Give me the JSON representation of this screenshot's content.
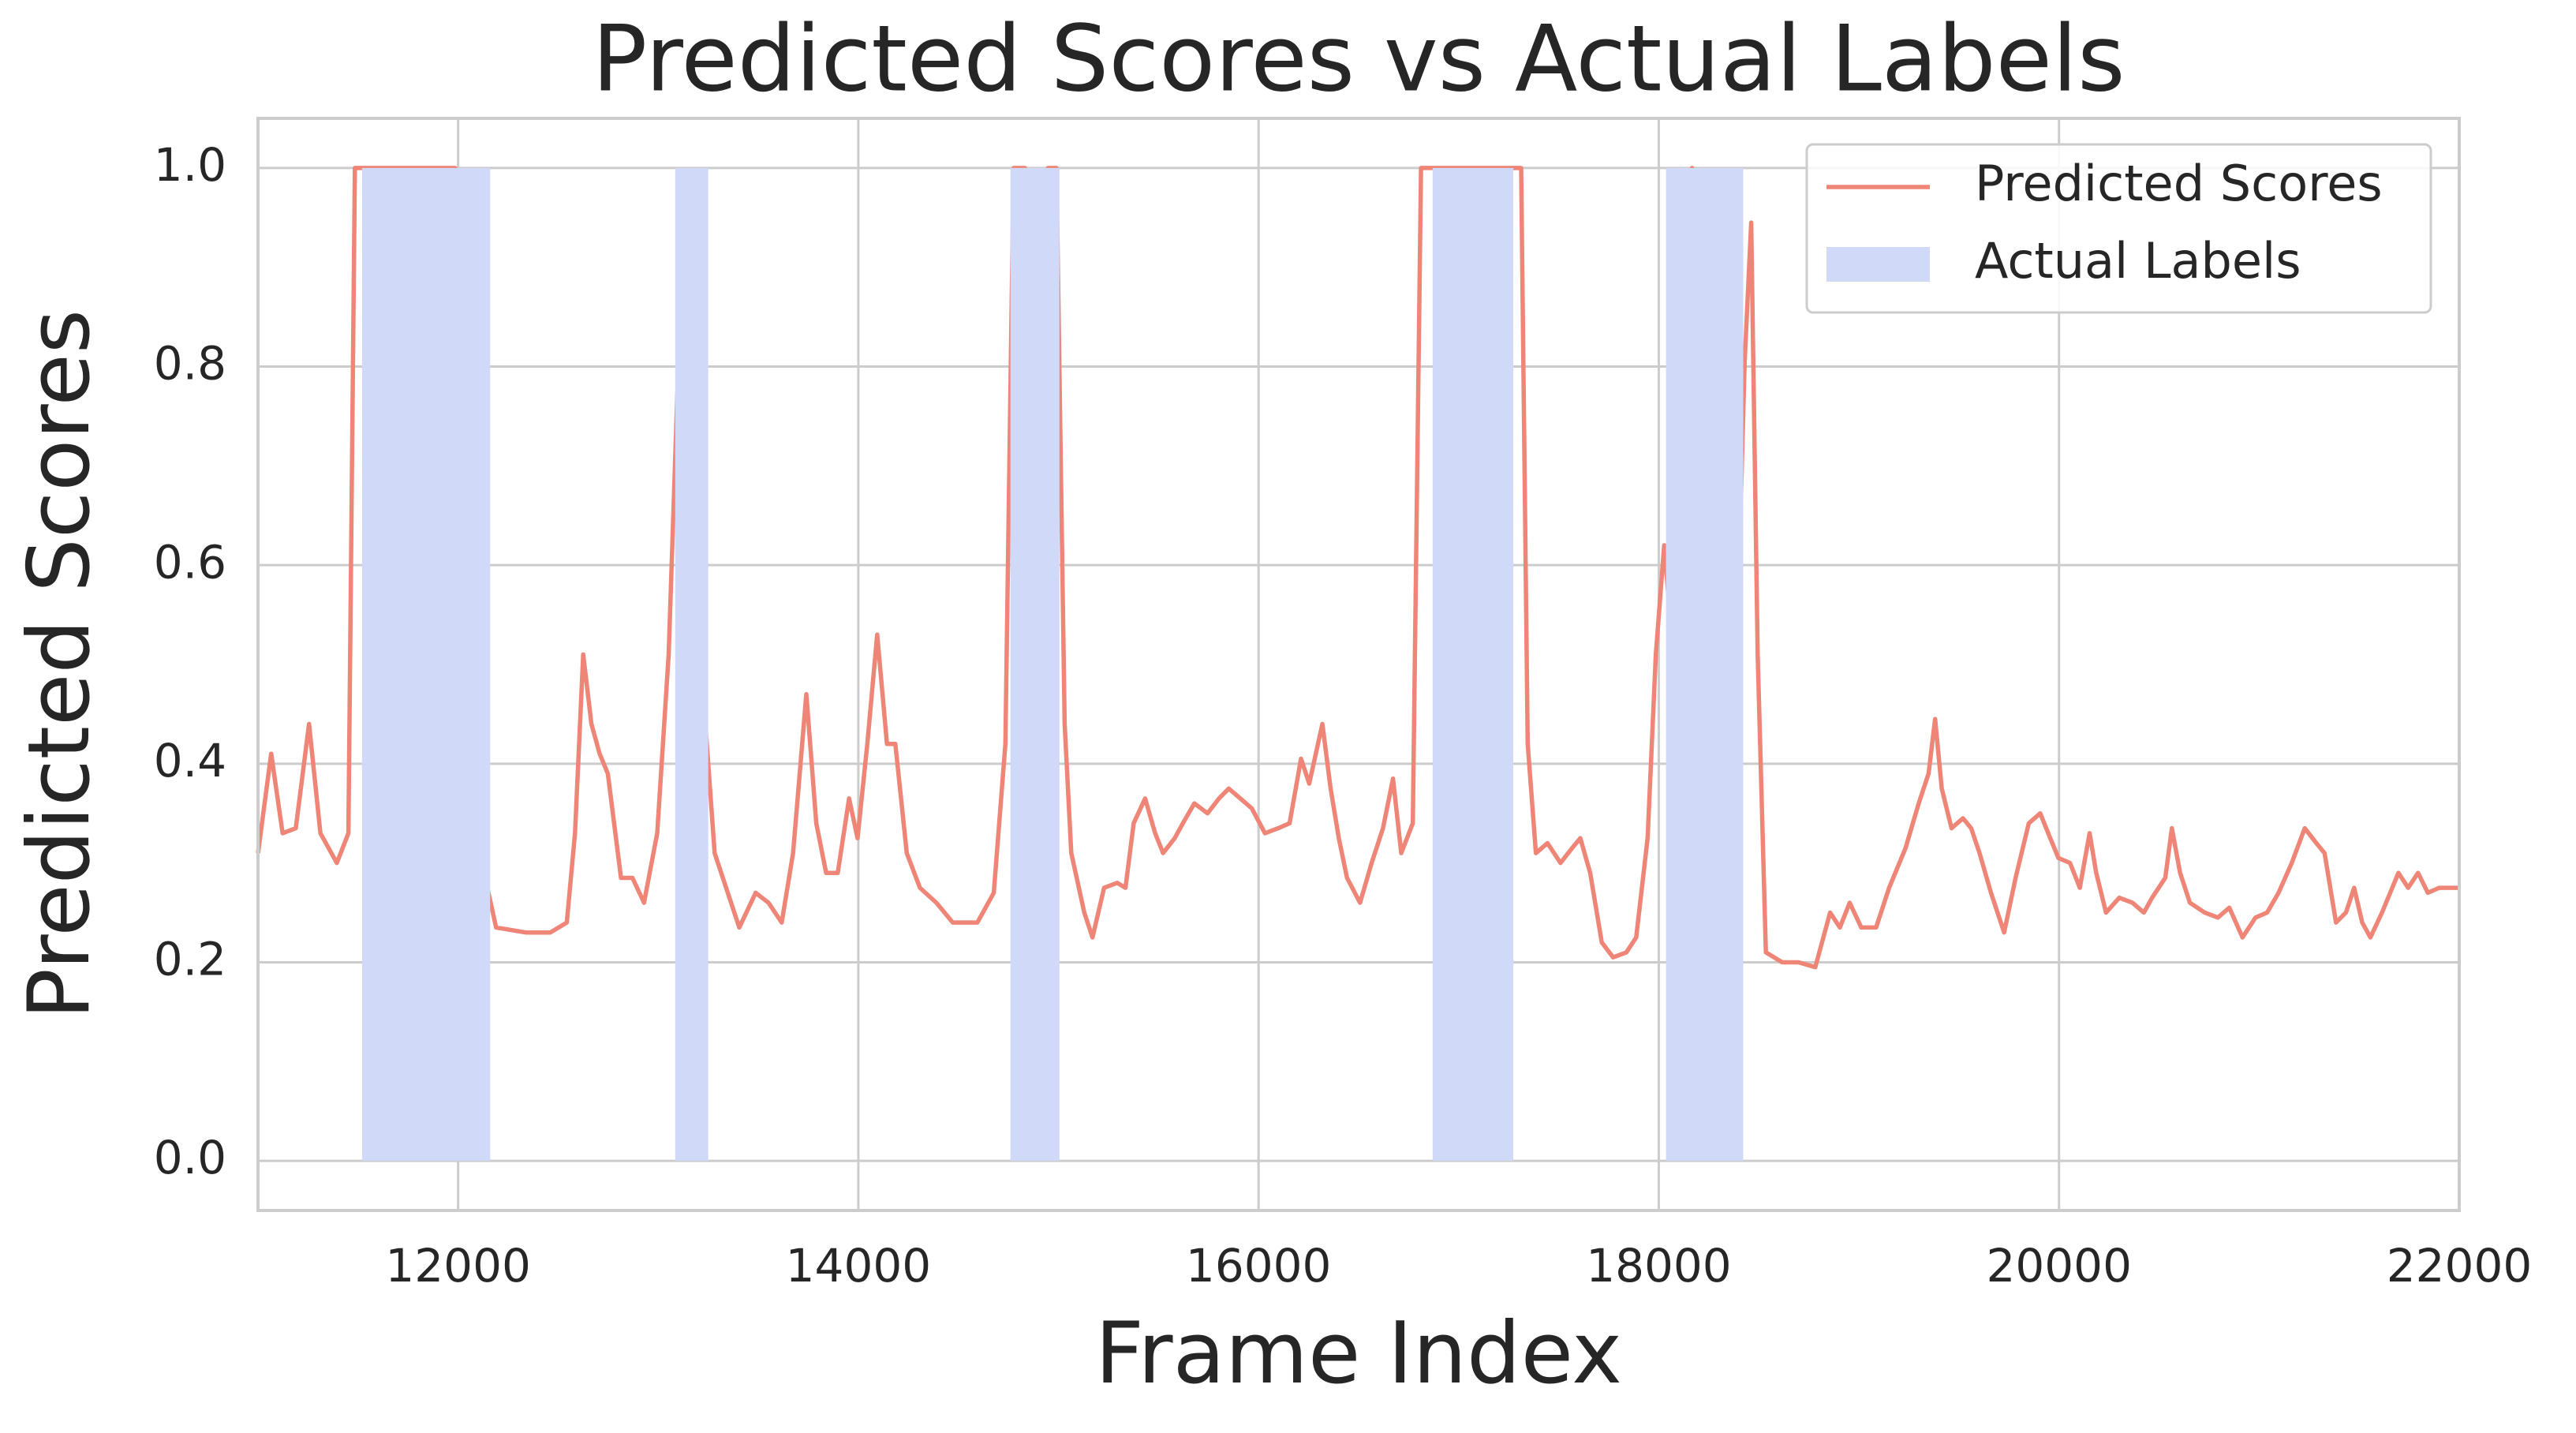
{
  "chart_data": {
    "type": "line",
    "title": "Predicted Scores vs Actual Labels",
    "xlabel": "Frame Index",
    "ylabel": "Predicted Scores",
    "xlim": [
      11000,
      22000
    ],
    "ylim": [
      -0.05,
      1.05
    ],
    "xticks": [
      12000,
      14000,
      16000,
      18000,
      20000,
      22000
    ],
    "yticks": [
      {
        "value": 0,
        "label": "0.0"
      },
      0.2,
      0.4,
      0.6,
      0.8,
      {
        "value": 1,
        "label": "1.0"
      }
    ],
    "grid": true,
    "legend": "upper right",
    "series": [
      {
        "name": "Predicted Scores",
        "color": "#ee8577",
        "x": [
          11000,
          11066,
          11123,
          11189,
          11255,
          11312,
          11394,
          11452,
          11484,
          11985,
          12010,
          12043,
          12092,
          12141,
          12190,
          12338,
          12461,
          12543,
          12584,
          12625,
          12666,
          12707,
          12748,
          12814,
          12871,
          12929,
          12995,
          13052,
          13110,
          13159,
          13225,
          13282,
          13405,
          13487,
          13551,
          13617,
          13674,
          13740,
          13790,
          13839,
          13897,
          13954,
          13996,
          14045,
          14094,
          14143,
          14185,
          14242,
          14308,
          14390,
          14472,
          14595,
          14677,
          14735,
          14776,
          14833,
          14866,
          14899,
          14932,
          14948,
          14990,
          15031,
          15064,
          15129,
          15170,
          15228,
          15294,
          15335,
          15376,
          15433,
          15483,
          15523,
          15581,
          15622,
          15679,
          15745,
          15802,
          15851,
          15909,
          15966,
          16032,
          16098,
          16155,
          16212,
          16253,
          16319,
          16360,
          16401,
          16442,
          16507,
          16565,
          16622,
          16672,
          16713,
          16771,
          16812,
          17312,
          17345,
          17386,
          17444,
          17509,
          17567,
          17608,
          17657,
          17715,
          17772,
          17838,
          17887,
          17944,
          17985,
          18027,
          18060,
          18101,
          18166,
          18199,
          18232,
          18273,
          18314,
          18355,
          18388,
          18429,
          18462,
          18494,
          18535,
          18617,
          18699,
          18782,
          18856,
          18905,
          18954,
          19012,
          19086,
          19151,
          19233,
          19299,
          19348,
          19381,
          19414,
          19463,
          19520,
          19561,
          19603,
          19660,
          19726,
          19783,
          19849,
          19906,
          19956,
          19997,
          20055,
          20104,
          20153,
          20186,
          20235,
          20301,
          20367,
          20424,
          20465,
          20531,
          20564,
          20605,
          20654,
          20728,
          20794,
          20851,
          20917,
          20982,
          21040,
          21097,
          21163,
          21228,
          21286,
          21327,
          21384,
          21434,
          21475,
          21515,
          21556,
          21614,
          21655,
          21696,
          21745,
          21794,
          21843,
          21900,
          22000
        ],
        "values": [
          0.31,
          0.41,
          0.33,
          0.335,
          0.44,
          0.33,
          0.3,
          0.33,
          1.0,
          1.0,
          0.68,
          0.66,
          0.47,
          0.28,
          0.235,
          0.23,
          0.23,
          0.24,
          0.33,
          0.51,
          0.44,
          0.41,
          0.39,
          0.285,
          0.285,
          0.26,
          0.33,
          0.51,
          0.86,
          0.72,
          0.47,
          0.31,
          0.235,
          0.27,
          0.26,
          0.24,
          0.31,
          0.47,
          0.34,
          0.29,
          0.29,
          0.365,
          0.325,
          0.42,
          0.53,
          0.42,
          0.42,
          0.31,
          0.275,
          0.26,
          0.24,
          0.24,
          0.27,
          0.42,
          1.0,
          1.0,
          0.92,
          0.825,
          0.97,
          1.0,
          1.0,
          0.44,
          0.31,
          0.25,
          0.225,
          0.275,
          0.28,
          0.275,
          0.34,
          0.365,
          0.33,
          0.31,
          0.325,
          0.34,
          0.36,
          0.35,
          0.365,
          0.375,
          0.365,
          0.355,
          0.33,
          0.335,
          0.34,
          0.405,
          0.38,
          0.44,
          0.375,
          0.325,
          0.285,
          0.26,
          0.3,
          0.335,
          0.385,
          0.31,
          0.34,
          1.0,
          1.0,
          0.42,
          0.31,
          0.32,
          0.3,
          0.315,
          0.325,
          0.29,
          0.22,
          0.205,
          0.21,
          0.225,
          0.325,
          0.51,
          0.62,
          0.54,
          0.62,
          1.0,
          0.95,
          0.74,
          0.7,
          0.69,
          0.61,
          0.5,
          0.805,
          0.945,
          0.51,
          0.21,
          0.2,
          0.2,
          0.195,
          0.25,
          0.235,
          0.26,
          0.235,
          0.235,
          0.275,
          0.315,
          0.36,
          0.39,
          0.445,
          0.375,
          0.335,
          0.345,
          0.335,
          0.31,
          0.27,
          0.23,
          0.285,
          0.34,
          0.35,
          0.325,
          0.305,
          0.3,
          0.275,
          0.33,
          0.29,
          0.25,
          0.265,
          0.26,
          0.25,
          0.265,
          0.285,
          0.335,
          0.29,
          0.26,
          0.25,
          0.245,
          0.255,
          0.225,
          0.245,
          0.25,
          0.27,
          0.3,
          0.335,
          0.32,
          0.31,
          0.24,
          0.25,
          0.275,
          0.24,
          0.225,
          0.25,
          0.27,
          0.29,
          0.275,
          0.29,
          0.27,
          0.275,
          0.275
        ]
      },
      {
        "name": "Actual Labels",
        "color": "#d0d9f7",
        "spans": [
          [
            11520,
            12160
          ],
          [
            13085,
            13250
          ],
          [
            14760,
            15005
          ],
          [
            16870,
            17273
          ],
          [
            18036,
            18422
          ]
        ],
        "values": [
          1,
          1,
          1,
          1,
          1
        ]
      }
    ]
  }
}
